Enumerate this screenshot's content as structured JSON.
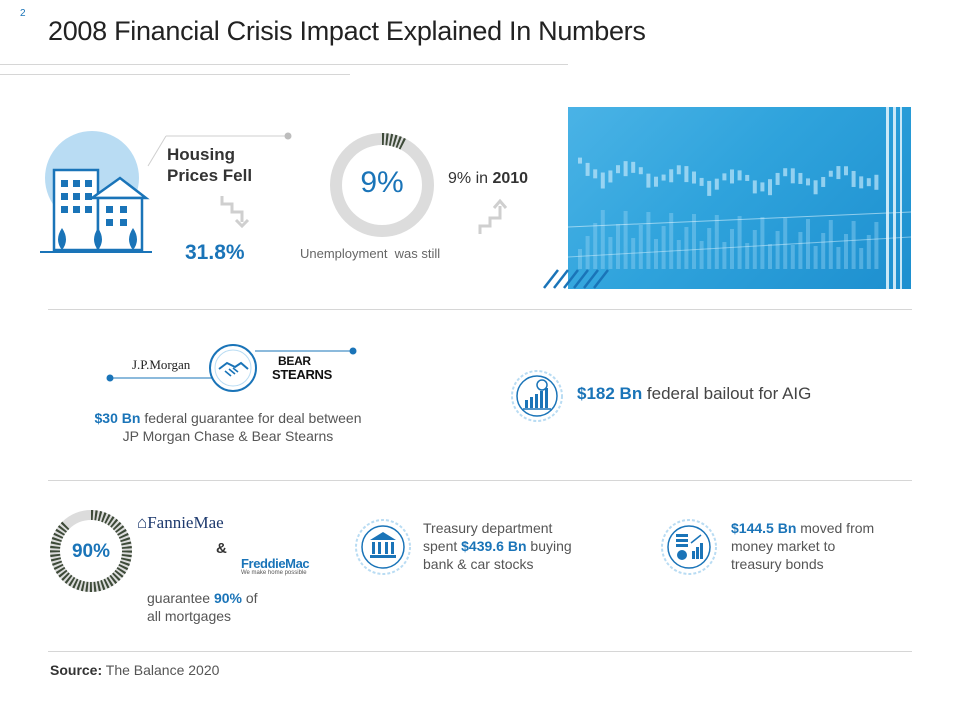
{
  "page": {
    "number": "2",
    "title": "2008 Financial Crisis Impact Explained In Numbers"
  },
  "housing": {
    "label": "Housing Prices Fell",
    "value": "31.8%"
  },
  "unemployment": {
    "donut_value": "9%",
    "donut_fraction": 0.09,
    "text_pre": "9% in ",
    "text_year": "2010",
    "caption": "Unemployment  was still"
  },
  "jpm": {
    "logo_left": "J.P.Morgan",
    "logo_right_1": "BEAR",
    "logo_right_2": "STEARNS",
    "amount": "$30 Bn",
    "desc_1": " federal guarantee for deal between",
    "desc_2": "JP Morgan Chase & Bear Stearns"
  },
  "aig": {
    "amount": "$182 Bn",
    "desc": " federal bailout for AIG"
  },
  "mortgages": {
    "donut_value": "90%",
    "donut_fraction": 0.9,
    "logo_fannie": "FannieMae",
    "ampersand": "&",
    "logo_freddie": "FreddieMac",
    "freddie_tagline": "We make home possible",
    "text_pre": "guarantee ",
    "percent": "90%",
    "text_post": " of",
    "text_line2": "all mortgages"
  },
  "treasury": {
    "line1": "Treasury department",
    "line2_pre": "spent ",
    "amount": "$439.6 Bn",
    "line2_post": " buying",
    "line3": "bank & car stocks"
  },
  "money_market": {
    "amount": "$144.5 Bn",
    "line1_post": " moved from",
    "line2": "money market to",
    "line3": "treasury bonds"
  },
  "source": {
    "label": "Source:",
    "text": " The Balance 2020"
  },
  "colors": {
    "accent": "#1a74b8",
    "light_blue": "#b9dcf3",
    "photo": "#2fa3dc",
    "grey": "#d9d9d9",
    "olive": "#3d4a38"
  }
}
